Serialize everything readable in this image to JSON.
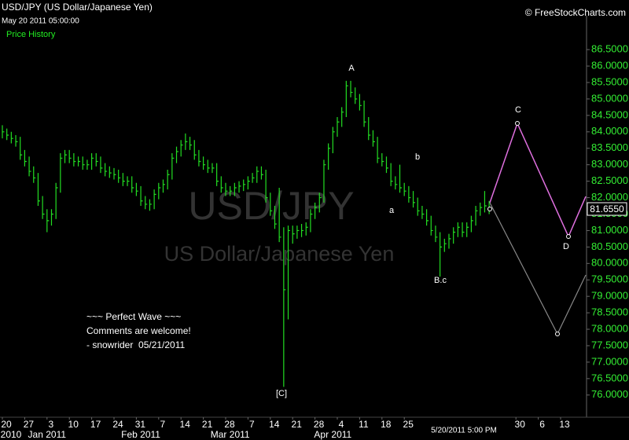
{
  "chart_data": {
    "type": "ohlc",
    "title": "USD/JPY (US Dollar/Japanese Yen)",
    "subtitle": "May 20 2011 05:00:00",
    "series_label": "Price History",
    "credit": "© FreeStockCharts.com",
    "watermark": [
      "USD/JPY",
      "US Dollar/Japanese Yen"
    ],
    "timestamp": "5/20/2011 5:00 PM",
    "color": "#22dd22",
    "x": [
      "2010-12-20",
      "2010-12-21",
      "2010-12-22",
      "2010-12-23",
      "2010-12-24",
      "2010-12-27",
      "2010-12-28",
      "2010-12-29",
      "2010-12-30",
      "2010-12-31",
      "2011-01-03",
      "2011-01-04",
      "2011-01-05",
      "2011-01-06",
      "2011-01-07",
      "2011-01-10",
      "2011-01-11",
      "2011-01-12",
      "2011-01-13",
      "2011-01-14",
      "2011-01-17",
      "2011-01-18",
      "2011-01-19",
      "2011-01-20",
      "2011-01-21",
      "2011-01-24",
      "2011-01-25",
      "2011-01-26",
      "2011-01-27",
      "2011-01-28",
      "2011-01-31",
      "2011-02-01",
      "2011-02-02",
      "2011-02-03",
      "2011-02-04",
      "2011-02-07",
      "2011-02-08",
      "2011-02-09",
      "2011-02-10",
      "2011-02-11",
      "2011-02-14",
      "2011-02-15",
      "2011-02-16",
      "2011-02-17",
      "2011-02-18",
      "2011-02-21",
      "2011-02-22",
      "2011-02-23",
      "2011-02-24",
      "2011-02-25",
      "2011-02-28",
      "2011-03-01",
      "2011-03-02",
      "2011-03-03",
      "2011-03-04",
      "2011-03-07",
      "2011-03-08",
      "2011-03-09",
      "2011-03-10",
      "2011-03-11",
      "2011-03-14",
      "2011-03-15",
      "2011-03-16",
      "2011-03-17",
      "2011-03-18",
      "2011-03-21",
      "2011-03-22",
      "2011-03-23",
      "2011-03-24",
      "2011-03-25",
      "2011-03-28",
      "2011-03-29",
      "2011-03-30",
      "2011-03-31",
      "2011-04-01",
      "2011-04-04",
      "2011-04-05",
      "2011-04-06",
      "2011-04-07",
      "2011-04-08",
      "2011-04-11",
      "2011-04-12",
      "2011-04-13",
      "2011-04-14",
      "2011-04-15",
      "2011-04-18",
      "2011-04-19",
      "2011-04-20",
      "2011-04-21",
      "2011-04-22",
      "2011-04-25",
      "2011-04-26",
      "2011-04-27",
      "2011-04-28",
      "2011-04-29",
      "2011-05-02",
      "2011-05-03",
      "2011-05-04",
      "2011-05-05",
      "2011-05-06",
      "2011-05-09",
      "2011-05-10",
      "2011-05-11",
      "2011-05-12",
      "2011-05-13",
      "2011-05-16",
      "2011-05-17",
      "2011-05-18",
      "2011-05-19",
      "2011-05-20"
    ],
    "high": [
      84.2,
      84.1,
      84.0,
      83.9,
      83.85,
      83.45,
      83.25,
      82.95,
      82.75,
      82.05,
      81.65,
      81.65,
      82.45,
      83.35,
      83.45,
      83.45,
      83.35,
      83.25,
      83.25,
      83.15,
      83.35,
      83.35,
      83.25,
      83.05,
      82.95,
      82.9,
      82.85,
      82.75,
      82.65,
      82.65,
      82.45,
      82.35,
      82.05,
      81.95,
      82.25,
      82.45,
      82.55,
      82.85,
      83.35,
      83.55,
      83.75,
      83.95,
      83.85,
      83.75,
      83.45,
      83.25,
      83.15,
      83.05,
      83.05,
      82.65,
      82.45,
      82.35,
      82.45,
      82.5,
      82.55,
      82.65,
      82.75,
      82.95,
      82.95,
      82.85,
      82.15,
      81.75,
      82.3,
      81.1,
      81.15,
      81.15,
      81.15,
      81.2,
      81.25,
      81.65,
      81.85,
      82.15,
      83.15,
      83.65,
      84.15,
      84.45,
      84.75,
      85.55,
      85.55,
      85.35,
      85.15,
      84.95,
      84.45,
      84.05,
      83.85,
      83.35,
      83.25,
      83.05,
      82.65,
      83.0,
      82.45,
      82.35,
      82.2,
      82.0,
      81.75,
      81.65,
      81.45,
      81.15,
      80.95,
      80.75,
      80.9,
      81.1,
      81.25,
      81.25,
      81.25,
      81.45,
      81.75,
      81.85,
      82.2,
      81.9
    ],
    "low": [
      83.8,
      83.75,
      83.65,
      83.55,
      83.15,
      82.95,
      82.65,
      82.45,
      81.75,
      81.35,
      80.95,
      81.15,
      81.35,
      82.15,
      83.05,
      83.05,
      82.95,
      82.95,
      82.85,
      82.85,
      82.85,
      82.95,
      82.75,
      82.65,
      82.6,
      82.55,
      82.45,
      82.35,
      82.35,
      82.15,
      82.05,
      81.75,
      81.65,
      81.6,
      81.65,
      81.95,
      82.15,
      82.25,
      82.55,
      83.05,
      83.25,
      83.45,
      83.45,
      83.15,
      82.95,
      82.85,
      82.75,
      82.75,
      82.35,
      82.15,
      82.05,
      82.05,
      82.05,
      82.15,
      82.2,
      82.25,
      82.45,
      82.45,
      82.55,
      81.85,
      81.45,
      81.05,
      80.65,
      76.25,
      78.3,
      80.6,
      80.75,
      80.8,
      80.85,
      80.95,
      81.35,
      81.55,
      81.85,
      82.85,
      83.35,
      83.85,
      84.15,
      84.45,
      85.05,
      84.85,
      84.65,
      84.15,
      83.75,
      83.55,
      83.05,
      82.95,
      82.75,
      82.35,
      82.25,
      82.15,
      82.05,
      81.85,
      81.7,
      81.45,
      81.35,
      81.15,
      80.85,
      80.65,
      79.6,
      80.35,
      80.45,
      80.6,
      80.8,
      80.8,
      80.8,
      80.95,
      81.15,
      81.45,
      81.55,
      81.5
    ],
    "close": [
      84.0,
      83.9,
      83.8,
      83.7,
      83.3,
      83.1,
      82.8,
      82.6,
      81.9,
      81.5,
      81.3,
      81.5,
      82.3,
      83.2,
      83.3,
      83.2,
      83.1,
      83.1,
      83.0,
      83.0,
      83.2,
      83.1,
      82.9,
      82.8,
      82.75,
      82.7,
      82.6,
      82.5,
      82.5,
      82.3,
      82.2,
      81.9,
      81.8,
      81.8,
      82.1,
      82.3,
      82.4,
      82.7,
      83.2,
      83.4,
      83.6,
      83.7,
      83.6,
      83.3,
      83.1,
      83.0,
      82.9,
      82.9,
      82.5,
      82.3,
      82.2,
      82.2,
      82.3,
      82.35,
      82.4,
      82.5,
      82.6,
      82.8,
      82.7,
      82.0,
      81.6,
      81.2,
      80.8,
      79.2,
      81.0,
      80.9,
      81.0,
      81.0,
      81.1,
      81.5,
      81.7,
      82.0,
      83.0,
      83.5,
      84.0,
      84.3,
      84.6,
      85.4,
      85.2,
      85.0,
      84.8,
      84.3,
      83.9,
      83.7,
      83.2,
      83.1,
      82.9,
      82.5,
      82.4,
      82.3,
      82.2,
      82.0,
      81.85,
      81.6,
      81.5,
      81.3,
      81.0,
      80.8,
      80.5,
      80.6,
      80.75,
      80.95,
      81.1,
      80.95,
      81.1,
      81.3,
      81.6,
      81.7,
      81.75,
      81.655
    ],
    "last_price": {
      "value": 81.655,
      "label": "81.6550"
    },
    "ylim": [
      75.35,
      87.53
    ],
    "yticks": [
      {
        "value": 76,
        "label": "76.0000"
      },
      {
        "value": 76.5,
        "label": "76.5000"
      },
      {
        "value": 77,
        "label": "77.0000"
      },
      {
        "value": 77.5,
        "label": "77.5000"
      },
      {
        "value": 78,
        "label": "78.0000"
      },
      {
        "value": 78.5,
        "label": "78.5000"
      },
      {
        "value": 79,
        "label": "79.0000"
      },
      {
        "value": 79.5,
        "label": "79.5000"
      },
      {
        "value": 80,
        "label": "80.0000"
      },
      {
        "value": 80.5,
        "label": "80.5000"
      },
      {
        "value": 81,
        "label": "81.0000"
      },
      {
        "value": 81.5,
        "label": "81.5000"
      },
      {
        "value": 82,
        "label": "82.0000"
      },
      {
        "value": 82.5,
        "label": "82.5000"
      },
      {
        "value": 83,
        "label": "83.0000"
      },
      {
        "value": 83.5,
        "label": "83.5000"
      },
      {
        "value": 84,
        "label": "84.0000"
      },
      {
        "value": 84.5,
        "label": "84.5000"
      },
      {
        "value": 85,
        "label": "85.0000"
      },
      {
        "value": 85.5,
        "label": "85.5000"
      },
      {
        "value": 86,
        "label": "86.0000"
      },
      {
        "value": 86.5,
        "label": "86.5000"
      }
    ],
    "xticks": [
      {
        "value": "2010-12-20",
        "label": "20"
      },
      {
        "value": "2010-12-27",
        "label": "27"
      },
      {
        "value": "2011-01-03",
        "label": "3"
      },
      {
        "value": "2011-01-10",
        "label": "10"
      },
      {
        "value": "2011-01-17",
        "label": "17"
      },
      {
        "value": "2011-01-24",
        "label": "24"
      },
      {
        "value": "2011-01-31",
        "label": "31"
      },
      {
        "value": "2011-02-07",
        "label": "7"
      },
      {
        "value": "2011-02-14",
        "label": "14"
      },
      {
        "value": "2011-02-21",
        "label": "21"
      },
      {
        "value": "2011-02-28",
        "label": "28"
      },
      {
        "value": "2011-03-07",
        "label": "7"
      },
      {
        "value": "2011-03-14",
        "label": "14"
      },
      {
        "value": "2011-03-21",
        "label": "21"
      },
      {
        "value": "2011-03-28",
        "label": "28"
      },
      {
        "value": "2011-04-04",
        "label": "4"
      },
      {
        "value": "2011-04-11",
        "label": "11"
      },
      {
        "value": "2011-04-18",
        "label": "18"
      },
      {
        "value": "2011-04-25",
        "label": "25"
      },
      {
        "value": "2011-05-30",
        "label": "30"
      },
      {
        "value": "2011-06-06",
        "label": "6"
      },
      {
        "value": "2011-06-13",
        "label": "13"
      }
    ],
    "month_ticks": [
      {
        "value": "2010-12-20",
        "label": "2010"
      },
      {
        "value": "2011-01-03",
        "label": "Jan 2011"
      },
      {
        "value": "2011-02-01",
        "label": "Feb 2011"
      },
      {
        "value": "2011-03-01",
        "label": "Mar 2011"
      },
      {
        "value": "2011-04-01",
        "label": "Apr 2011"
      }
    ],
    "annotations": [
      "A",
      "b",
      "a",
      "B.c",
      "[C]",
      "C",
      "D"
    ],
    "comment": [
      "~~~ Perfect Wave ~~~",
      "Comments are welcome!",
      "- snowrider  05/21/2011"
    ]
  }
}
